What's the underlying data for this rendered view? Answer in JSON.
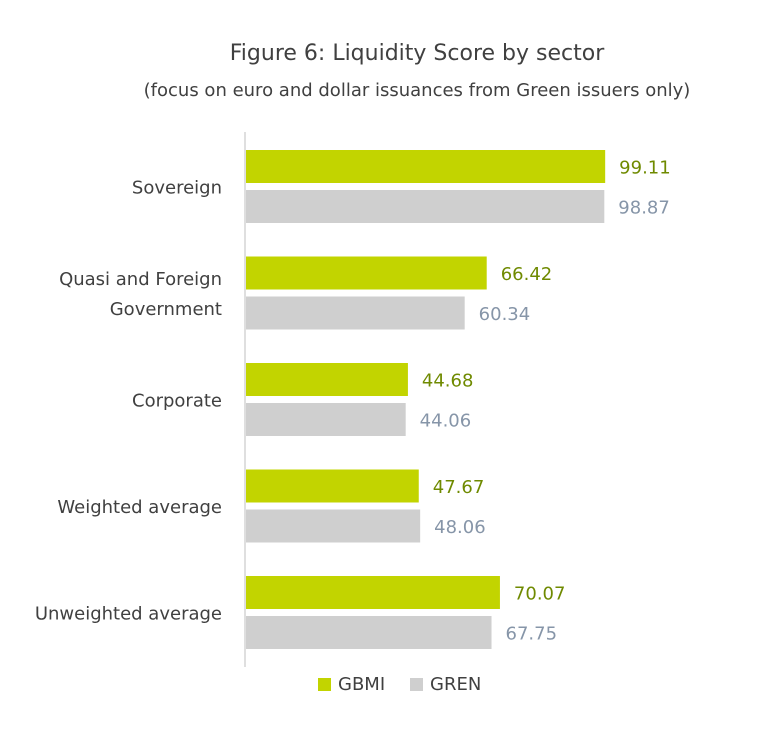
{
  "chart_data": {
    "type": "bar",
    "orientation": "horizontal",
    "title": "Figure 6: Liquidity Score by sector",
    "subtitle": "(focus on euro and dollar issuances from Green issuers only)",
    "categories": [
      [
        "Sovereign"
      ],
      [
        "Quasi and Foreign",
        "Government"
      ],
      [
        "Corporate"
      ],
      [
        "Weighted average"
      ],
      [
        "Unweighted average"
      ]
    ],
    "series": [
      {
        "name": "GBMI",
        "values": [
          99.11,
          66.42,
          44.68,
          47.67,
          70.07
        ],
        "color": "#c2d400",
        "label_color": "#6f8a00"
      },
      {
        "name": "GREN",
        "values": [
          98.87,
          60.34,
          44.06,
          48.06,
          67.75
        ],
        "color": "#cfcfcf",
        "label_color": "#8695a8"
      }
    ],
    "xlim": [
      0,
      100
    ],
    "grid": false,
    "legend_position": "bottom"
  }
}
